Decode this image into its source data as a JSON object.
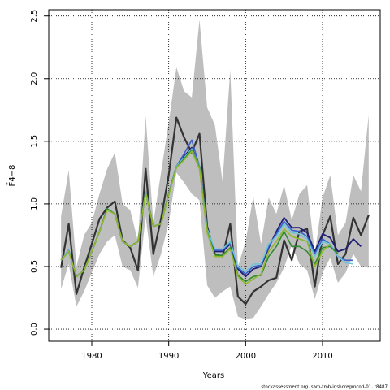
{
  "chart_data": {
    "type": "line",
    "xlabel": "Years",
    "ylabel": "F̄4−8",
    "footnote": "stockassessment.org, sam-tmb-inshoregmcod-01, r8487",
    "xlim": [
      1974.4,
      2017.5
    ],
    "ylim": [
      -0.097,
      2.55
    ],
    "xticks": [
      1980,
      1990,
      2000,
      2010
    ],
    "yticks": [
      {
        "value": 0,
        "label": "0.0"
      },
      0.5,
      {
        "value": 1,
        "label": "1.0"
      },
      1.5,
      {
        "value": 2,
        "label": "2.0"
      },
      2.5
    ],
    "grid": true,
    "x": [
      1976,
      1977,
      1978,
      1979,
      1980,
      1981,
      1982,
      1983,
      1984,
      1985,
      1986,
      1987,
      1988,
      1989,
      1990,
      1991,
      1992,
      1993,
      1994,
      1995,
      1996,
      1997,
      1998,
      1999,
      2000,
      2001,
      2002,
      2003,
      2004,
      2005,
      2006,
      2007,
      2008,
      2009,
      2010,
      2011,
      2012,
      2013,
      2014,
      2015,
      2016
    ],
    "band_color": "#bebebe",
    "band_upper": [
      0.9,
      1.27,
      0.5,
      0.75,
      0.85,
      1.08,
      1.28,
      1.41,
      1.0,
      0.95,
      0.7,
      1.7,
      0.85,
      1.25,
      1.65,
      2.09,
      1.9,
      1.85,
      2.47,
      1.77,
      1.63,
      1.18,
      2.07,
      0.5,
      0.7,
      1.06,
      0.68,
      1.05,
      0.92,
      1.15,
      0.87,
      1.08,
      1.15,
      0.6,
      1.05,
      1.23,
      0.75,
      0.85,
      1.23,
      1.1,
      1.71
    ],
    "band_lower": [
      0.32,
      0.52,
      0.18,
      0.3,
      0.45,
      0.6,
      0.7,
      0.75,
      0.5,
      0.47,
      0.33,
      0.9,
      0.42,
      0.6,
      0.85,
      1.25,
      1.17,
      1.08,
      1.03,
      0.35,
      0.25,
      0.3,
      0.34,
      0.1,
      0.08,
      0.09,
      0.18,
      0.28,
      0.37,
      0.49,
      0.67,
      0.52,
      0.47,
      0.24,
      0.45,
      0.57,
      0.37,
      0.45,
      0.6,
      0.5,
      0.49
    ],
    "series": [
      {
        "color": "#333333",
        "width": 2.2,
        "values": [
          0.49,
          0.84,
          0.28,
          0.49,
          0.68,
          0.88,
          0.97,
          1.02,
          0.71,
          0.65,
          0.47,
          1.28,
          0.6,
          0.88,
          1.23,
          1.69,
          1.53,
          1.41,
          1.56,
          0.82,
          0.6,
          0.58,
          0.84,
          0.26,
          0.2,
          0.3,
          0.34,
          0.39,
          0.41,
          0.71,
          0.55,
          0.78,
          0.8,
          0.34,
          0.75,
          0.9,
          0.52,
          0.6,
          0.89,
          0.75,
          0.91
        ]
      },
      {
        "color": "#1f1f75",
        "width": 1.8,
        "values": [
          0.55,
          0.63,
          0.42,
          0.47,
          0.62,
          0.78,
          0.96,
          0.92,
          0.7,
          0.66,
          0.7,
          1.1,
          0.82,
          0.84,
          1.08,
          1.3,
          1.38,
          1.45,
          1.3,
          0.8,
          0.62,
          0.62,
          0.68,
          0.48,
          0.42,
          0.48,
          0.5,
          0.65,
          0.78,
          0.89,
          0.81,
          0.81,
          0.77,
          0.62,
          0.76,
          0.73,
          0.62,
          0.64,
          0.72,
          0.66,
          null
        ]
      },
      {
        "color": "#3a5fcd",
        "width": 1.6,
        "values": [
          0.55,
          0.63,
          0.42,
          0.47,
          0.62,
          0.78,
          0.96,
          0.92,
          0.7,
          0.66,
          0.7,
          1.1,
          0.82,
          0.84,
          1.08,
          1.3,
          1.4,
          1.51,
          1.3,
          0.8,
          0.63,
          0.63,
          0.69,
          0.49,
          0.44,
          0.5,
          0.51,
          0.66,
          0.76,
          0.86,
          0.79,
          0.78,
          0.74,
          0.6,
          0.72,
          0.68,
          0.58,
          0.55,
          0.55,
          null,
          null
        ]
      },
      {
        "color": "#6cc5d8",
        "width": 1.6,
        "values": [
          0.55,
          0.63,
          0.42,
          0.47,
          0.62,
          0.78,
          0.96,
          0.92,
          0.7,
          0.66,
          0.7,
          1.1,
          0.82,
          0.84,
          1.08,
          1.3,
          1.37,
          1.44,
          1.3,
          0.8,
          0.64,
          0.64,
          0.7,
          0.5,
          0.46,
          0.52,
          0.52,
          0.68,
          0.74,
          0.84,
          0.77,
          0.76,
          0.72,
          0.58,
          0.7,
          0.68,
          0.58,
          0.53,
          0.52,
          null,
          null
        ]
      },
      {
        "color": "#2e8b2e",
        "width": 1.6,
        "values": [
          0.55,
          0.62,
          0.42,
          0.47,
          0.62,
          0.78,
          0.96,
          0.92,
          0.7,
          0.66,
          0.7,
          1.09,
          0.82,
          0.84,
          1.08,
          1.29,
          1.36,
          1.43,
          1.29,
          0.78,
          0.59,
          0.59,
          0.65,
          0.43,
          0.38,
          0.42,
          0.43,
          0.58,
          0.66,
          0.78,
          0.66,
          0.66,
          0.62,
          0.52,
          0.65,
          0.66,
          0.6,
          null,
          null,
          null,
          null
        ]
      },
      {
        "color": "#8fb82e",
        "width": 1.6,
        "values": [
          0.55,
          0.62,
          0.42,
          0.47,
          0.62,
          0.78,
          0.95,
          0.92,
          0.7,
          0.66,
          0.7,
          1.09,
          0.82,
          0.84,
          1.07,
          1.29,
          1.35,
          1.42,
          1.28,
          0.77,
          0.58,
          0.58,
          0.64,
          0.42,
          0.36,
          0.4,
          0.44,
          0.62,
          0.7,
          0.8,
          0.74,
          0.72,
          0.7,
          0.5,
          0.62,
          0.68,
          null,
          null,
          null,
          null,
          null
        ]
      }
    ]
  }
}
